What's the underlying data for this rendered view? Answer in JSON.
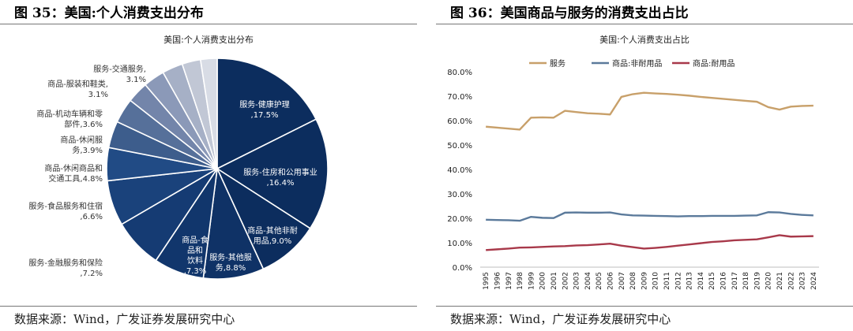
{
  "left_panel": {
    "figure_title": "图 35：美国:个人消费支出分布",
    "source": "数据来源：Wind，广发证券发展研究中心"
  },
  "right_panel": {
    "figure_title": "图 36：美国商品与服务的消费支出占比",
    "source": "数据来源：Wind，广发证券发展研究中心"
  },
  "chart_data": [
    {
      "type": "pie",
      "title": "美国:个人消费支出分布",
      "slices": [
        {
          "label": "服务-健康护理,",
          "pct_label": "17.5%",
          "value": 17.5,
          "color": "#0c2d5e"
        },
        {
          "label": "服务-住房和公用事业,",
          "pct_label": "16.4%",
          "value": 16.4,
          "color": "#0c2d5e"
        },
        {
          "label": "商品-其他非耐用品,",
          "pct_label": "9.0%",
          "value": 9.0,
          "color": "#0c2d5e"
        },
        {
          "label": "服务-其他服务,",
          "pct_label": "8.8%",
          "value": 8.8,
          "color": "#0f3266"
        },
        {
          "label": "商品-食品和饮料,",
          "pct_label": "7.3%",
          "value": 7.3,
          "color": "#11366c"
        },
        {
          "label": "服务-金融服务和保险,",
          "pct_label": "7.2%",
          "value": 7.2,
          "color": "#153b73"
        },
        {
          "label": "服务-食品服务和住宿,",
          "pct_label": "6.6%",
          "value": 6.6,
          "color": "#1a427b"
        },
        {
          "label": "商品-休闲商品和交通工具,",
          "pct_label": "4.8%",
          "value": 4.8,
          "color": "#214b85"
        },
        {
          "label": "商品-休闲服务,",
          "pct_label": "3.9%",
          "value": 3.9,
          "color": "#3d5d8c"
        },
        {
          "label": "商品-机动车辆和零部件,",
          "pct_label": "3.6%",
          "value": 3.6,
          "color": "#56709a"
        },
        {
          "label": "商品-服装和鞋类,",
          "pct_label": "3.1%",
          "value": 3.1,
          "color": "#7385aa"
        },
        {
          "label": "服务-交通服务,",
          "pct_label": "3.1%",
          "value": 3.1,
          "color": "#8b99b8"
        },
        {
          "label": "",
          "pct_label": "",
          "value": 3.0,
          "color": "#a6b0c6"
        },
        {
          "label": "",
          "pct_label": "",
          "value": 2.7,
          "color": "#c1c7d5"
        },
        {
          "label": "",
          "pct_label": "",
          "value": 2.4,
          "color": "#d8dce5"
        }
      ]
    },
    {
      "type": "line",
      "title": "美国:个人消费支出占比",
      "x": [
        "1995",
        "1996",
        "1997",
        "1998",
        "1999",
        "2000",
        "2001",
        "2002",
        "2003",
        "2004",
        "2005",
        "2006",
        "2007",
        "2008",
        "2009",
        "2010",
        "2011",
        "2012",
        "2013",
        "2014",
        "2015",
        "2016",
        "2017",
        "2018",
        "2019",
        "2020",
        "2021",
        "2022",
        "2023",
        "2024"
      ],
      "series": [
        {
          "name": "服务",
          "color": "#c8a06a",
          "values": [
            57.5,
            57.1,
            56.7,
            56.3,
            61.2,
            61.3,
            61.2,
            64.0,
            63.5,
            63.0,
            62.8,
            62.5,
            69.7,
            70.8,
            71.4,
            71.1,
            70.9,
            70.6,
            70.2,
            69.7,
            69.3,
            68.9,
            68.5,
            68.1,
            67.7,
            65.5,
            64.5,
            65.7,
            66.0,
            66.1
          ]
        },
        {
          "name": "商品:非耐用品",
          "color": "#5b7a9b",
          "values": [
            19.4,
            19.3,
            19.2,
            19.0,
            20.6,
            20.2,
            20.1,
            22.3,
            22.4,
            22.3,
            22.3,
            22.4,
            21.6,
            21.2,
            21.1,
            21.0,
            20.9,
            20.8,
            20.9,
            20.9,
            21.0,
            21.0,
            21.0,
            21.1,
            21.2,
            22.5,
            22.4,
            21.8,
            21.4,
            21.2
          ]
        },
        {
          "name": "商品:耐用品",
          "color": "#a8394a",
          "values": [
            7.0,
            7.3,
            7.6,
            8.0,
            8.1,
            8.3,
            8.5,
            8.6,
            8.9,
            9.0,
            9.3,
            9.6,
            8.8,
            8.2,
            7.6,
            7.9,
            8.3,
            8.8,
            9.3,
            9.8,
            10.3,
            10.6,
            11.0,
            11.2,
            11.4,
            12.2,
            13.1,
            12.5,
            12.6,
            12.7
          ]
        }
      ],
      "ylim": [
        0,
        80
      ],
      "yticks": [
        "0.0%",
        "10.0%",
        "20.0%",
        "30.0%",
        "40.0%",
        "50.0%",
        "60.0%",
        "70.0%",
        "80.0%"
      ],
      "legend_position": "top"
    }
  ]
}
